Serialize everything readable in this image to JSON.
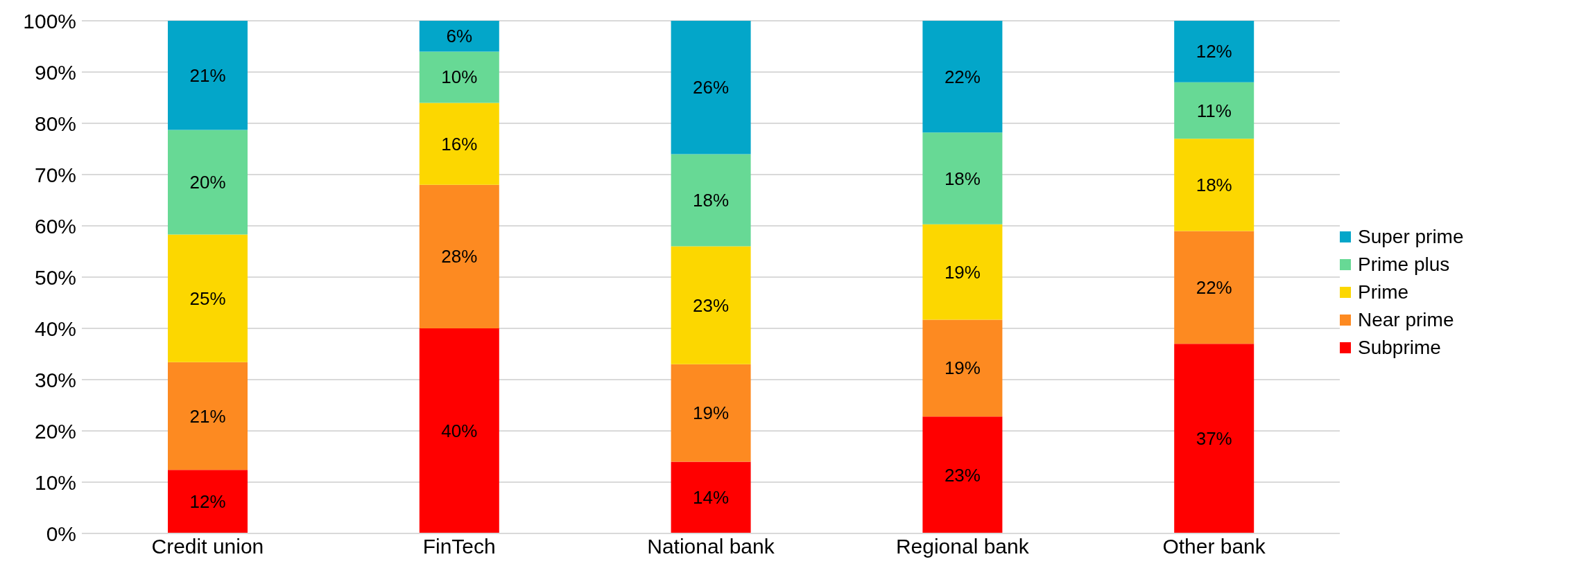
{
  "chart_data": {
    "type": "bar",
    "stacked": true,
    "categories": [
      "Credit union",
      "FinTech",
      "National bank",
      "Regional bank",
      "Other bank"
    ],
    "series": [
      {
        "name": "Subprime",
        "color": "#ff0000",
        "values": [
          12.4,
          40,
          14,
          22.8,
          37
        ],
        "value_labels": [
          "12%",
          "40%",
          "14%",
          "23%",
          "37%"
        ]
      },
      {
        "name": "Near prime",
        "color": "#fd8a21",
        "values": [
          21,
          28,
          19,
          18.9,
          22
        ],
        "value_labels": [
          "21%",
          "28%",
          "19%",
          "19%",
          "22%"
        ]
      },
      {
        "name": "Prime",
        "color": "#fcd700",
        "values": [
          24.9,
          16,
          23,
          18.6,
          18
        ],
        "value_labels": [
          "25%",
          "16%",
          "23%",
          "19%",
          "18%"
        ]
      },
      {
        "name": "Prime plus",
        "color": "#67d995",
        "values": [
          20.4,
          10,
          18,
          17.9,
          11
        ],
        "value_labels": [
          "20%",
          "10%",
          "18%",
          "18%",
          "11%"
        ]
      },
      {
        "name": "Super prime",
        "color": "#03a6c9",
        "values": [
          21.3,
          6,
          26,
          21.8,
          12
        ],
        "value_labels": [
          "21%",
          "6%",
          "26%",
          "22%",
          "12%"
        ]
      }
    ],
    "ylim": [
      0,
      100
    ],
    "yticks": [
      {
        "value": 0,
        "label": "0%"
      },
      {
        "value": 10,
        "label": "10%"
      },
      {
        "value": 20,
        "label": "20%"
      },
      {
        "value": 30,
        "label": "30%"
      },
      {
        "value": 40,
        "label": "40%"
      },
      {
        "value": 50,
        "label": "50%"
      },
      {
        "value": 60,
        "label": "60%"
      },
      {
        "value": 70,
        "label": "70%"
      },
      {
        "value": 80,
        "label": "80%"
      },
      {
        "value": 90,
        "label": "90%"
      },
      {
        "value": 100,
        "label": "100%"
      }
    ],
    "grid": "y",
    "legend": "right"
  }
}
